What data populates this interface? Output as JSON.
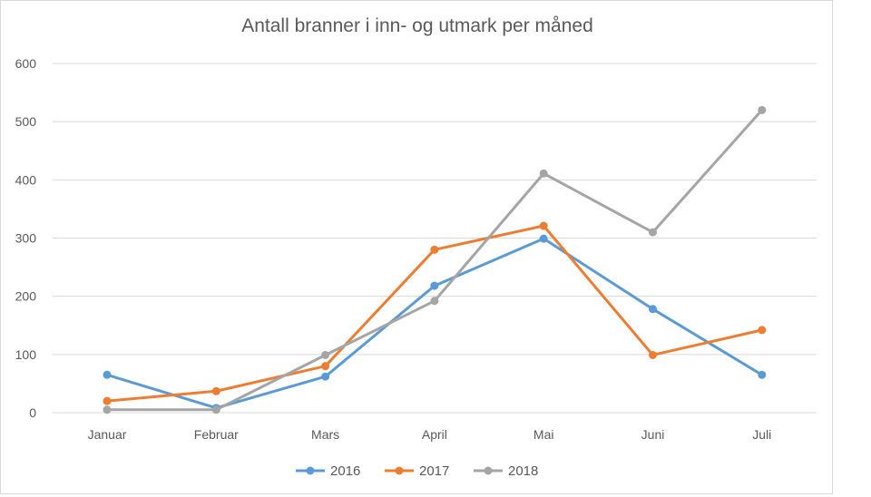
{
  "chart_data": {
    "type": "line",
    "title": "Antall  branner i inn- og utmark per måned",
    "xlabel": "",
    "ylabel": "",
    "categories": [
      "Januar",
      "Februar",
      "Mars",
      "April",
      "Mai",
      "Juni",
      "Juli"
    ],
    "ylim": [
      0,
      600
    ],
    "yticks": [
      0,
      100,
      200,
      300,
      400,
      500,
      600
    ],
    "grid": true,
    "legend_position": "bottom",
    "series": [
      {
        "name": "2016",
        "color": "#5b9bd5",
        "values": [
          65,
          8,
          62,
          218,
          299,
          178,
          65
        ]
      },
      {
        "name": "2017",
        "color": "#ed7d31",
        "values": [
          20,
          37,
          80,
          280,
          321,
          99,
          142
        ]
      },
      {
        "name": "2018",
        "color": "#a5a5a5",
        "values": [
          5,
          5,
          99,
          192,
          411,
          310,
          520
        ]
      }
    ]
  }
}
